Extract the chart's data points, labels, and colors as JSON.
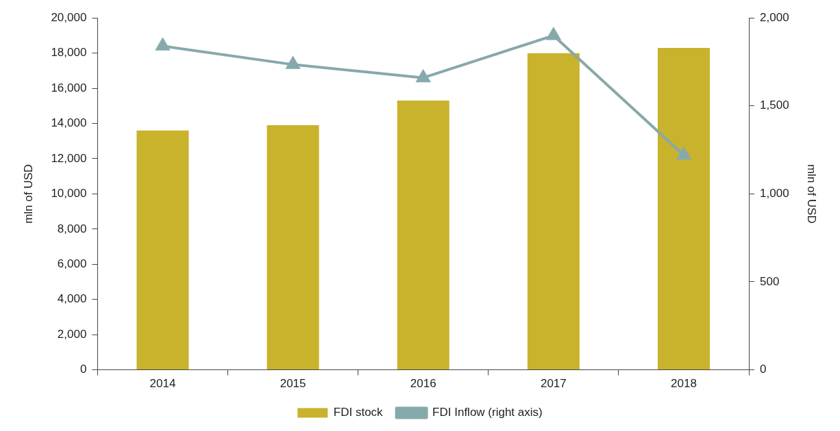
{
  "chart_data": {
    "type": "bar",
    "ylabel": "mln of USD",
    "y2label": "mln of USD",
    "categories": [
      "2014",
      "2015",
      "2016",
      "2017",
      "2018"
    ],
    "series": [
      {
        "name": "FDI stock",
        "color": "#c9b22c",
        "values": [
          13600,
          13900,
          15300,
          18000,
          18300
        ]
      },
      {
        "name": "FDI Inflow (right axis)",
        "type": "line",
        "axis": "y2",
        "color": "#86a9ab",
        "marker": "triangle",
        "values": [
          1840,
          1735,
          1660,
          1900,
          1220
        ]
      }
    ],
    "ylim": [
      0,
      20000
    ],
    "yticks": [
      0,
      {
        "value": 2000,
        "label": "2,000"
      },
      {
        "value": 4000,
        "label": "4,000"
      },
      {
        "value": 6000,
        "label": "6,000"
      },
      {
        "value": 8000,
        "label": "8,000"
      },
      {
        "value": 10000,
        "label": "10,000"
      },
      {
        "value": 12000,
        "label": "12,000"
      },
      {
        "value": 14000,
        "label": "14,000"
      },
      {
        "value": 16000,
        "label": "16,000"
      },
      {
        "value": 18000,
        "label": "18,000"
      },
      {
        "value": 20000,
        "label": "20,000"
      }
    ],
    "y2lim": [
      0,
      2000
    ],
    "y2ticks": [
      0,
      500,
      {
        "value": 1000,
        "label": "1,000"
      },
      {
        "value": 1500,
        "label": "1,500"
      },
      {
        "value": 2000,
        "label": "2,000"
      }
    ],
    "grid": false,
    "legend": "bottom"
  }
}
